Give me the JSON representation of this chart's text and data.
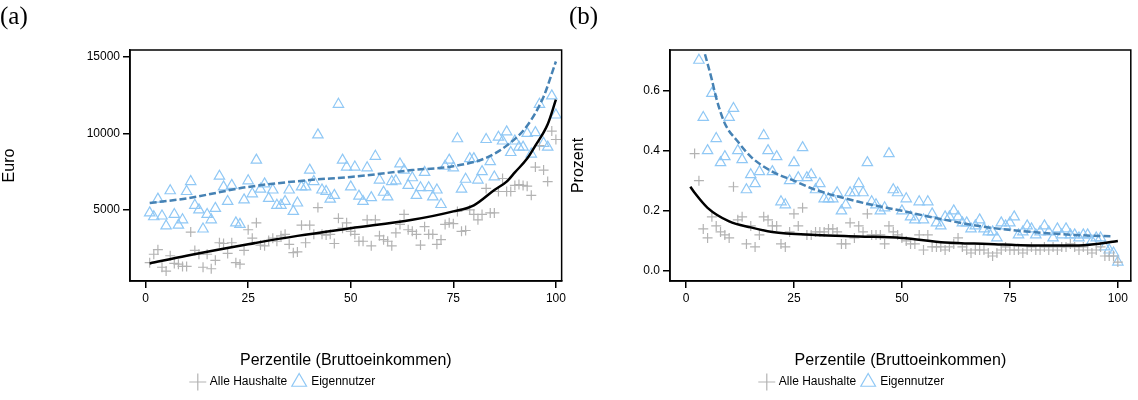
{
  "chart_data": [
    {
      "type": "scatter",
      "title": "(a)",
      "xlabel": "Perzentile (Bruttoeinkommen)",
      "ylabel": "Euro",
      "xlim": [
        -3.8,
        101.4
      ],
      "xticks": [
        0,
        25,
        50,
        75,
        100
      ],
      "ylim": [
        350,
        15450
      ],
      "yticks": [
        5000,
        10000,
        15000
      ],
      "grid": false,
      "legend": "bottom",
      "x": [
        1,
        2,
        3,
        4,
        5,
        6,
        7,
        8,
        9,
        10,
        11,
        12,
        13,
        14,
        15,
        16,
        17,
        18,
        19,
        20,
        21,
        22,
        23,
        24,
        25,
        26,
        27,
        28,
        29,
        30,
        31,
        32,
        33,
        34,
        35,
        36,
        37,
        38,
        39,
        40,
        41,
        42,
        43,
        44,
        45,
        46,
        47,
        48,
        49,
        50,
        51,
        52,
        53,
        54,
        55,
        56,
        57,
        58,
        59,
        60,
        61,
        62,
        63,
        64,
        65,
        66,
        67,
        68,
        69,
        70,
        71,
        72,
        73,
        74,
        75,
        76,
        77,
        78,
        79,
        80,
        81,
        82,
        83,
        84,
        85,
        86,
        87,
        88,
        89,
        90,
        91,
        92,
        93,
        94,
        95,
        96,
        97,
        98,
        99,
        100
      ],
      "series": [
        {
          "name": "Alle Haushalte",
          "color": "#b3b3b3",
          "marker": "cross",
          "values": [
            1550,
            2100,
            2400,
            1250,
            1000,
            2000,
            1500,
            1450,
            1300,
            1300,
            3550,
            2350,
            2100,
            1250,
            2100,
            1150,
            1700,
            2850,
            2800,
            2150,
            2850,
            1550,
            1450,
            2350,
            3700,
            3150,
            4150,
            2700,
            2650,
            3000,
            3150,
            2950,
            3300,
            3400,
            2750,
            2200,
            2250,
            4000,
            2850,
            4000,
            3400,
            5150,
            3400,
            3350,
            3400,
            2800,
            4450,
            3800,
            4150,
            3600,
            3400,
            2950,
            2950,
            4350,
            2650,
            4350,
            3300,
            3050,
            2950,
            2650,
            3500,
            4050,
            4700,
            3700,
            3600,
            3400,
            2700,
            3900,
            3400,
            3400,
            2750,
            3050,
            4050,
            4150,
            4100,
            4900,
            3600,
            3650,
            5000,
            4700,
            4350,
            4700,
            6400,
            4800,
            4800,
            6200,
            7050,
            6200,
            6200,
            6600,
            6650,
            6600,
            6550,
            5950,
            7800,
            9200,
            7600,
            6850,
            10150,
            9600
          ]
        },
        {
          "name": "Eigennutzer",
          "color": "#90c8f5",
          "marker": "triangle",
          "values": [
            4800,
            4550,
            5700,
            4600,
            3950,
            6250,
            4700,
            4000,
            4350,
            6200,
            6850,
            5300,
            5000,
            3750,
            4700,
            4350,
            5100,
            7200,
            6500,
            5550,
            6600,
            4150,
            4050,
            5650,
            6900,
            6050,
            8250,
            6350,
            6700,
            5750,
            6300,
            5300,
            5300,
            5550,
            6300,
            4900,
            5450,
            6500,
            6500,
            7600,
            6850,
            9900,
            6300,
            6200,
            5700,
            5950,
            11900,
            8250,
            7800,
            6500,
            7800,
            5900,
            5550,
            7750,
            5800,
            8500,
            6950,
            6150,
            5850,
            6850,
            6900,
            8000,
            7600,
            6600,
            7100,
            5950,
            6450,
            7450,
            6450,
            5850,
            6300,
            5350,
            7850,
            8250,
            7750,
            9650,
            6350,
            7000,
            8350,
            8350,
            6950,
            7500,
            9600,
            8150,
            7150,
            9750,
            9500,
            10100,
            8750,
            9500,
            9100,
            9100,
            10000,
            8650,
            10050,
            11900,
            9350,
            9100,
            12450,
            11200
          ]
        },
        {
          "type": "line",
          "color": "#000000",
          "marker": "none",
          "line_style": "solid",
          "x": [
            1,
            10,
            25,
            37,
            50,
            65,
            75,
            80,
            85,
            88,
            90,
            93,
            95,
            98,
            100
          ],
          "values": [
            1500,
            2000,
            2750,
            3300,
            3800,
            4350,
            4900,
            5300,
            6300,
            6850,
            7450,
            8350,
            9200,
            10600,
            12200
          ]
        },
        {
          "type": "line",
          "color": "#4682b4",
          "marker": "none",
          "line_style": "dashed",
          "x": [
            1,
            10,
            25,
            40,
            50,
            65,
            75,
            83,
            88,
            93,
            97,
            100
          ],
          "values": [
            5450,
            5750,
            6500,
            6950,
            7150,
            7600,
            7850,
            8400,
            9200,
            10500,
            12400,
            14700
          ]
        }
      ]
    },
    {
      "type": "scatter",
      "title": "(b)",
      "xlabel": "Perzentile (Bruttoeinkommen)",
      "ylabel": "Prozent",
      "xlim": [
        -3.7,
        103
      ],
      "xticks": [
        0,
        25,
        50,
        75,
        100
      ],
      "ylim": [
        -0.033,
        0.734
      ],
      "yticks": [
        {
          "value": 0,
          "label": "0.0"
        },
        0.2,
        0.4,
        0.6
      ],
      "grid": false,
      "legend": "bottom",
      "x": [
        2,
        3,
        4,
        5,
        6,
        7,
        8,
        9,
        10,
        11,
        12,
        13,
        14,
        15,
        16,
        17,
        18,
        19,
        20,
        21,
        22,
        23,
        24,
        25,
        26,
        27,
        28,
        29,
        30,
        31,
        32,
        33,
        34,
        35,
        36,
        37,
        38,
        39,
        40,
        41,
        42,
        43,
        44,
        45,
        46,
        47,
        48,
        49,
        50,
        51,
        52,
        53,
        54,
        55,
        56,
        57,
        58,
        59,
        60,
        61,
        62,
        63,
        64,
        65,
        66,
        67,
        68,
        69,
        70,
        71,
        72,
        73,
        74,
        75,
        76,
        77,
        78,
        79,
        80,
        81,
        82,
        83,
        84,
        85,
        86,
        87,
        88,
        89,
        90,
        91,
        92,
        93,
        94,
        95,
        96,
        97,
        98,
        99,
        100
      ],
      "series": [
        {
          "name": "Alle Haushalte",
          "color": "#b3b3b3",
          "marker": "cross",
          "values": [
            0.39,
            0.3,
            0.14,
            0.11,
            0.18,
            0.15,
            0.13,
            0.12,
            0.11,
            0.28,
            0.17,
            0.18,
            0.09,
            0.15,
            0.08,
            0.12,
            0.18,
            0.17,
            0.15,
            0.15,
            0.09,
            0.08,
            0.13,
            0.19,
            0.15,
            0.21,
            0.12,
            0.12,
            0.13,
            0.13,
            0.13,
            0.14,
            0.14,
            0.13,
            0.09,
            0.09,
            0.16,
            0.11,
            0.15,
            0.13,
            0.19,
            0.12,
            0.12,
            0.12,
            0.09,
            0.15,
            0.13,
            0.12,
            0.11,
            0.1,
            0.09,
            0.09,
            0.12,
            0.07,
            0.12,
            0.08,
            0.08,
            0.08,
            0.07,
            0.08,
            0.09,
            0.11,
            0.08,
            0.07,
            0.06,
            0.07,
            0.07,
            0.07,
            0.06,
            0.05,
            0.06,
            0.07,
            0.08,
            0.07,
            0.07,
            0.07,
            0.06,
            0.07,
            0.08,
            0.07,
            0.07,
            0.08,
            0.07,
            0.08,
            0.07,
            0.08,
            0.08,
            0.09,
            0.08,
            0.07,
            0.08,
            0.07,
            0.06,
            0.07,
            0.08,
            0.05,
            0.05,
            0.05,
            0.03
          ]
        },
        {
          "name": "Eigennutzer",
          "color": "#90c8f5",
          "marker": "triangle",
          "values": [
            null,
            0.7,
            0.51,
            0.4,
            0.59,
            0.44,
            0.36,
            0.38,
            0.51,
            0.54,
            0.4,
            0.37,
            0.27,
            0.32,
            0.29,
            0.33,
            0.45,
            0.4,
            0.33,
            0.38,
            0.23,
            0.22,
            0.3,
            0.36,
            0.31,
            0.41,
            0.31,
            0.32,
            0.27,
            0.29,
            0.24,
            0.24,
            0.24,
            0.26,
            0.2,
            0.22,
            0.26,
            0.26,
            0.29,
            0.26,
            0.36,
            0.23,
            0.22,
            0.2,
            0.21,
            0.39,
            0.27,
            0.26,
            0.2,
            0.24,
            0.18,
            0.17,
            0.23,
            0.17,
            0.23,
            0.19,
            0.16,
            0.15,
            0.18,
            0.18,
            0.2,
            0.18,
            0.16,
            0.16,
            0.14,
            0.15,
            0.17,
            0.14,
            0.13,
            0.13,
            0.11,
            0.16,
            0.15,
            0.16,
            0.18,
            0.12,
            0.13,
            0.15,
            0.14,
            0.12,
            0.13,
            0.15,
            0.13,
            0.11,
            0.14,
            0.12,
            0.14,
            0.12,
            0.12,
            0.11,
            0.12,
            0.12,
            0.1,
            0.11,
            0.11,
            0.08,
            0.07,
            0.06,
            0.03
          ]
        },
        {
          "type": "line",
          "color": "#000000",
          "marker": "none",
          "line_style": "solid",
          "x": [
            1,
            2,
            5,
            10,
            15,
            20,
            30,
            40,
            50,
            60,
            70,
            80,
            90,
            95,
            100
          ],
          "values": [
            0.28,
            0.26,
            0.21,
            0.165,
            0.145,
            0.13,
            0.12,
            0.115,
            0.11,
            0.095,
            0.09,
            0.085,
            0.085,
            0.09,
            0.1
          ]
        },
        {
          "type": "line",
          "color": "#4682b4",
          "marker": "none",
          "line_style": "dashed",
          "x": [
            4.4,
            6,
            7,
            9,
            12,
            15,
            20,
            25,
            30,
            40,
            50,
            60,
            70,
            80,
            90,
            98.6
          ],
          "values": [
            0.72,
            0.635,
            0.575,
            0.49,
            0.43,
            0.38,
            0.33,
            0.3,
            0.27,
            0.23,
            0.2,
            0.17,
            0.145,
            0.13,
            0.12,
            0.115
          ]
        }
      ]
    }
  ]
}
